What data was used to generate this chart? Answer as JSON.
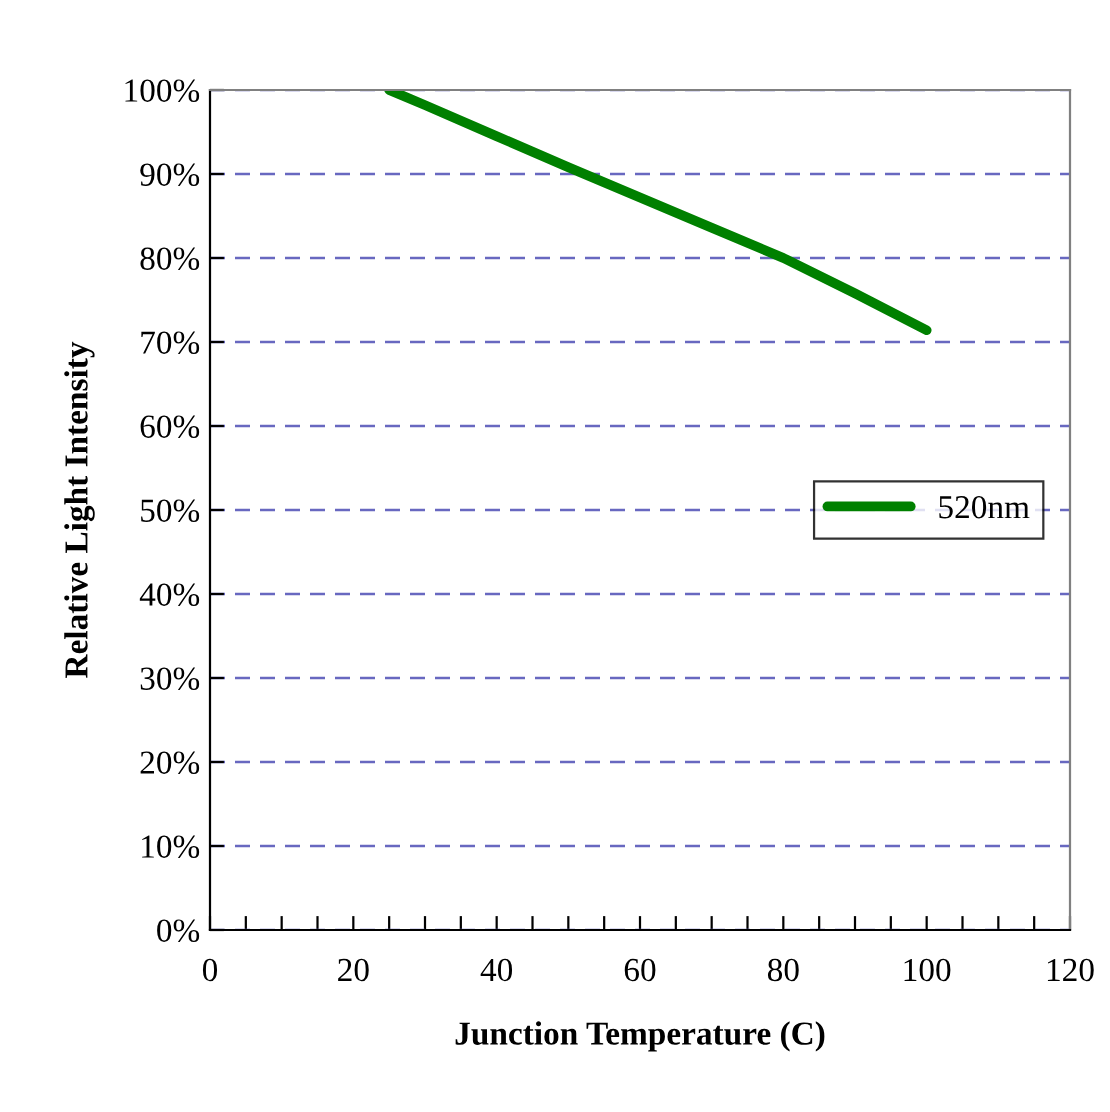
{
  "chart_data": {
    "type": "line",
    "xlabel": "Junction Temperature (C)",
    "ylabel": "Relative Light Intensity",
    "x": [
      25,
      30,
      40,
      50,
      60,
      70,
      80,
      90,
      100
    ],
    "series": [
      {
        "name": "520nm",
        "color": "#008000",
        "values": [
          100,
          98.2,
          94.5,
          90.8,
          87.2,
          83.6,
          80,
          75.8,
          71.4
        ]
      }
    ],
    "xlim": [
      0,
      120
    ],
    "xticks": [
      0,
      {
        "value": 5,
        "label": null
      },
      20,
      {
        "value": 10,
        "label": null
      },
      {
        "value": 15,
        "label": null
      },
      {
        "value": 25,
        "label": null
      },
      {
        "value": 30,
        "label": null
      },
      {
        "value": 35,
        "label": null
      },
      40,
      {
        "value": 45,
        "label": null
      },
      {
        "value": 50,
        "label": null
      },
      {
        "value": 55,
        "label": null
      },
      60,
      {
        "value": 65,
        "label": null
      },
      {
        "value": 70,
        "label": null
      },
      {
        "value": 75,
        "label": null
      },
      80,
      {
        "value": 85,
        "label": null
      },
      {
        "value": 90,
        "label": null
      },
      {
        "value": 95,
        "label": null
      },
      100,
      {
        "value": 105,
        "label": null
      },
      {
        "value": 110,
        "label": null
      },
      {
        "value": 115,
        "label": null
      },
      120
    ],
    "ylim": [
      0,
      100
    ],
    "yticks": [
      {
        "value": 0,
        "label": "0%"
      },
      {
        "value": 10,
        "label": "10%"
      },
      {
        "value": 20,
        "label": "20%"
      },
      {
        "value": 30,
        "label": "30%"
      },
      {
        "value": 40,
        "label": "40%"
      },
      {
        "value": 50,
        "label": "50%"
      },
      {
        "value": 60,
        "label": "60%"
      },
      {
        "value": 70,
        "label": "70%"
      },
      {
        "value": 80,
        "label": "80%"
      },
      {
        "value": 90,
        "label": "90%"
      },
      {
        "value": 100,
        "label": "100%"
      }
    ],
    "grid": "y",
    "legend": "right",
    "marker": "none",
    "line_style": "solid"
  }
}
